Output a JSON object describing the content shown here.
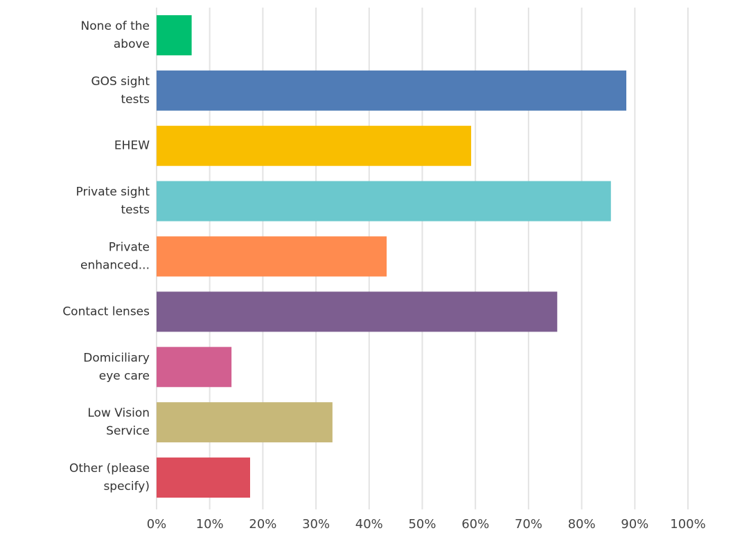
{
  "chart_data": {
    "type": "barh",
    "categories": [
      [
        "None of the",
        "above"
      ],
      [
        "GOS sight",
        "tests"
      ],
      [
        "EHEW"
      ],
      [
        "Private sight",
        "tests"
      ],
      [
        "Private",
        "enhanced..."
      ],
      [
        "Contact lenses"
      ],
      [
        "Domiciliary",
        "eye care"
      ],
      [
        "Low Vision",
        "Service"
      ],
      [
        "Other (please",
        "specify)"
      ]
    ],
    "values": [
      6.6,
      88.4,
      59.2,
      85.5,
      43.3,
      75.4,
      14.1,
      33.1,
      17.6
    ],
    "colors": [
      "#00bf6f",
      "#507cb6",
      "#f9be00",
      "#6bc8cd",
      "#ff8b4f",
      "#7d5e90",
      "#d25f90",
      "#c7b879",
      "#dc4d5c"
    ],
    "xlim": [
      0,
      100
    ],
    "xticks": [
      {
        "value": 0,
        "label": "0%"
      },
      {
        "value": 10,
        "label": "10%"
      },
      {
        "value": 20,
        "label": "20%"
      },
      {
        "value": 30,
        "label": "30%"
      },
      {
        "value": 40,
        "label": "40%"
      },
      {
        "value": 50,
        "label": "50%"
      },
      {
        "value": 60,
        "label": "60%"
      },
      {
        "value": 70,
        "label": "70%"
      },
      {
        "value": 80,
        "label": "80%"
      },
      {
        "value": 90,
        "label": "90%"
      },
      {
        "value": 100,
        "label": "100%"
      }
    ],
    "grid": true
  }
}
